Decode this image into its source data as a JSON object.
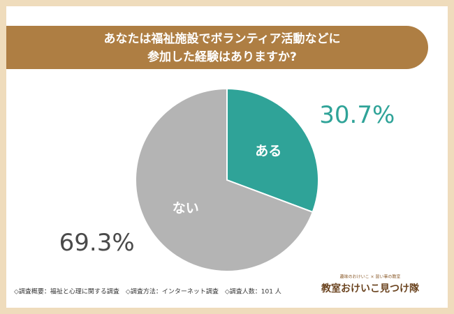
{
  "chart_data": {
    "type": "pie",
    "title_lines": [
      "あなたは福祉施設でボランティア活動などに",
      "参加した経験はありますか?"
    ],
    "categories": [
      "ある",
      "ない"
    ],
    "values": [
      30.7,
      69.3
    ],
    "value_labels": [
      "30.7%",
      "69.3%"
    ],
    "colors": [
      "#2fa398",
      "#b4b4b4"
    ],
    "label_colors": [
      "#2fa398",
      "#4a4a4a"
    ]
  },
  "footer": {
    "note": "◇調査概要：福祉と心理に関する調査　◇調査方法：インターネット調査　◇調査人数：101 人",
    "logo_small": "趣味のおけいこ × 習い事の教室",
    "logo_main": "教室おけいこ見つけ隊"
  }
}
